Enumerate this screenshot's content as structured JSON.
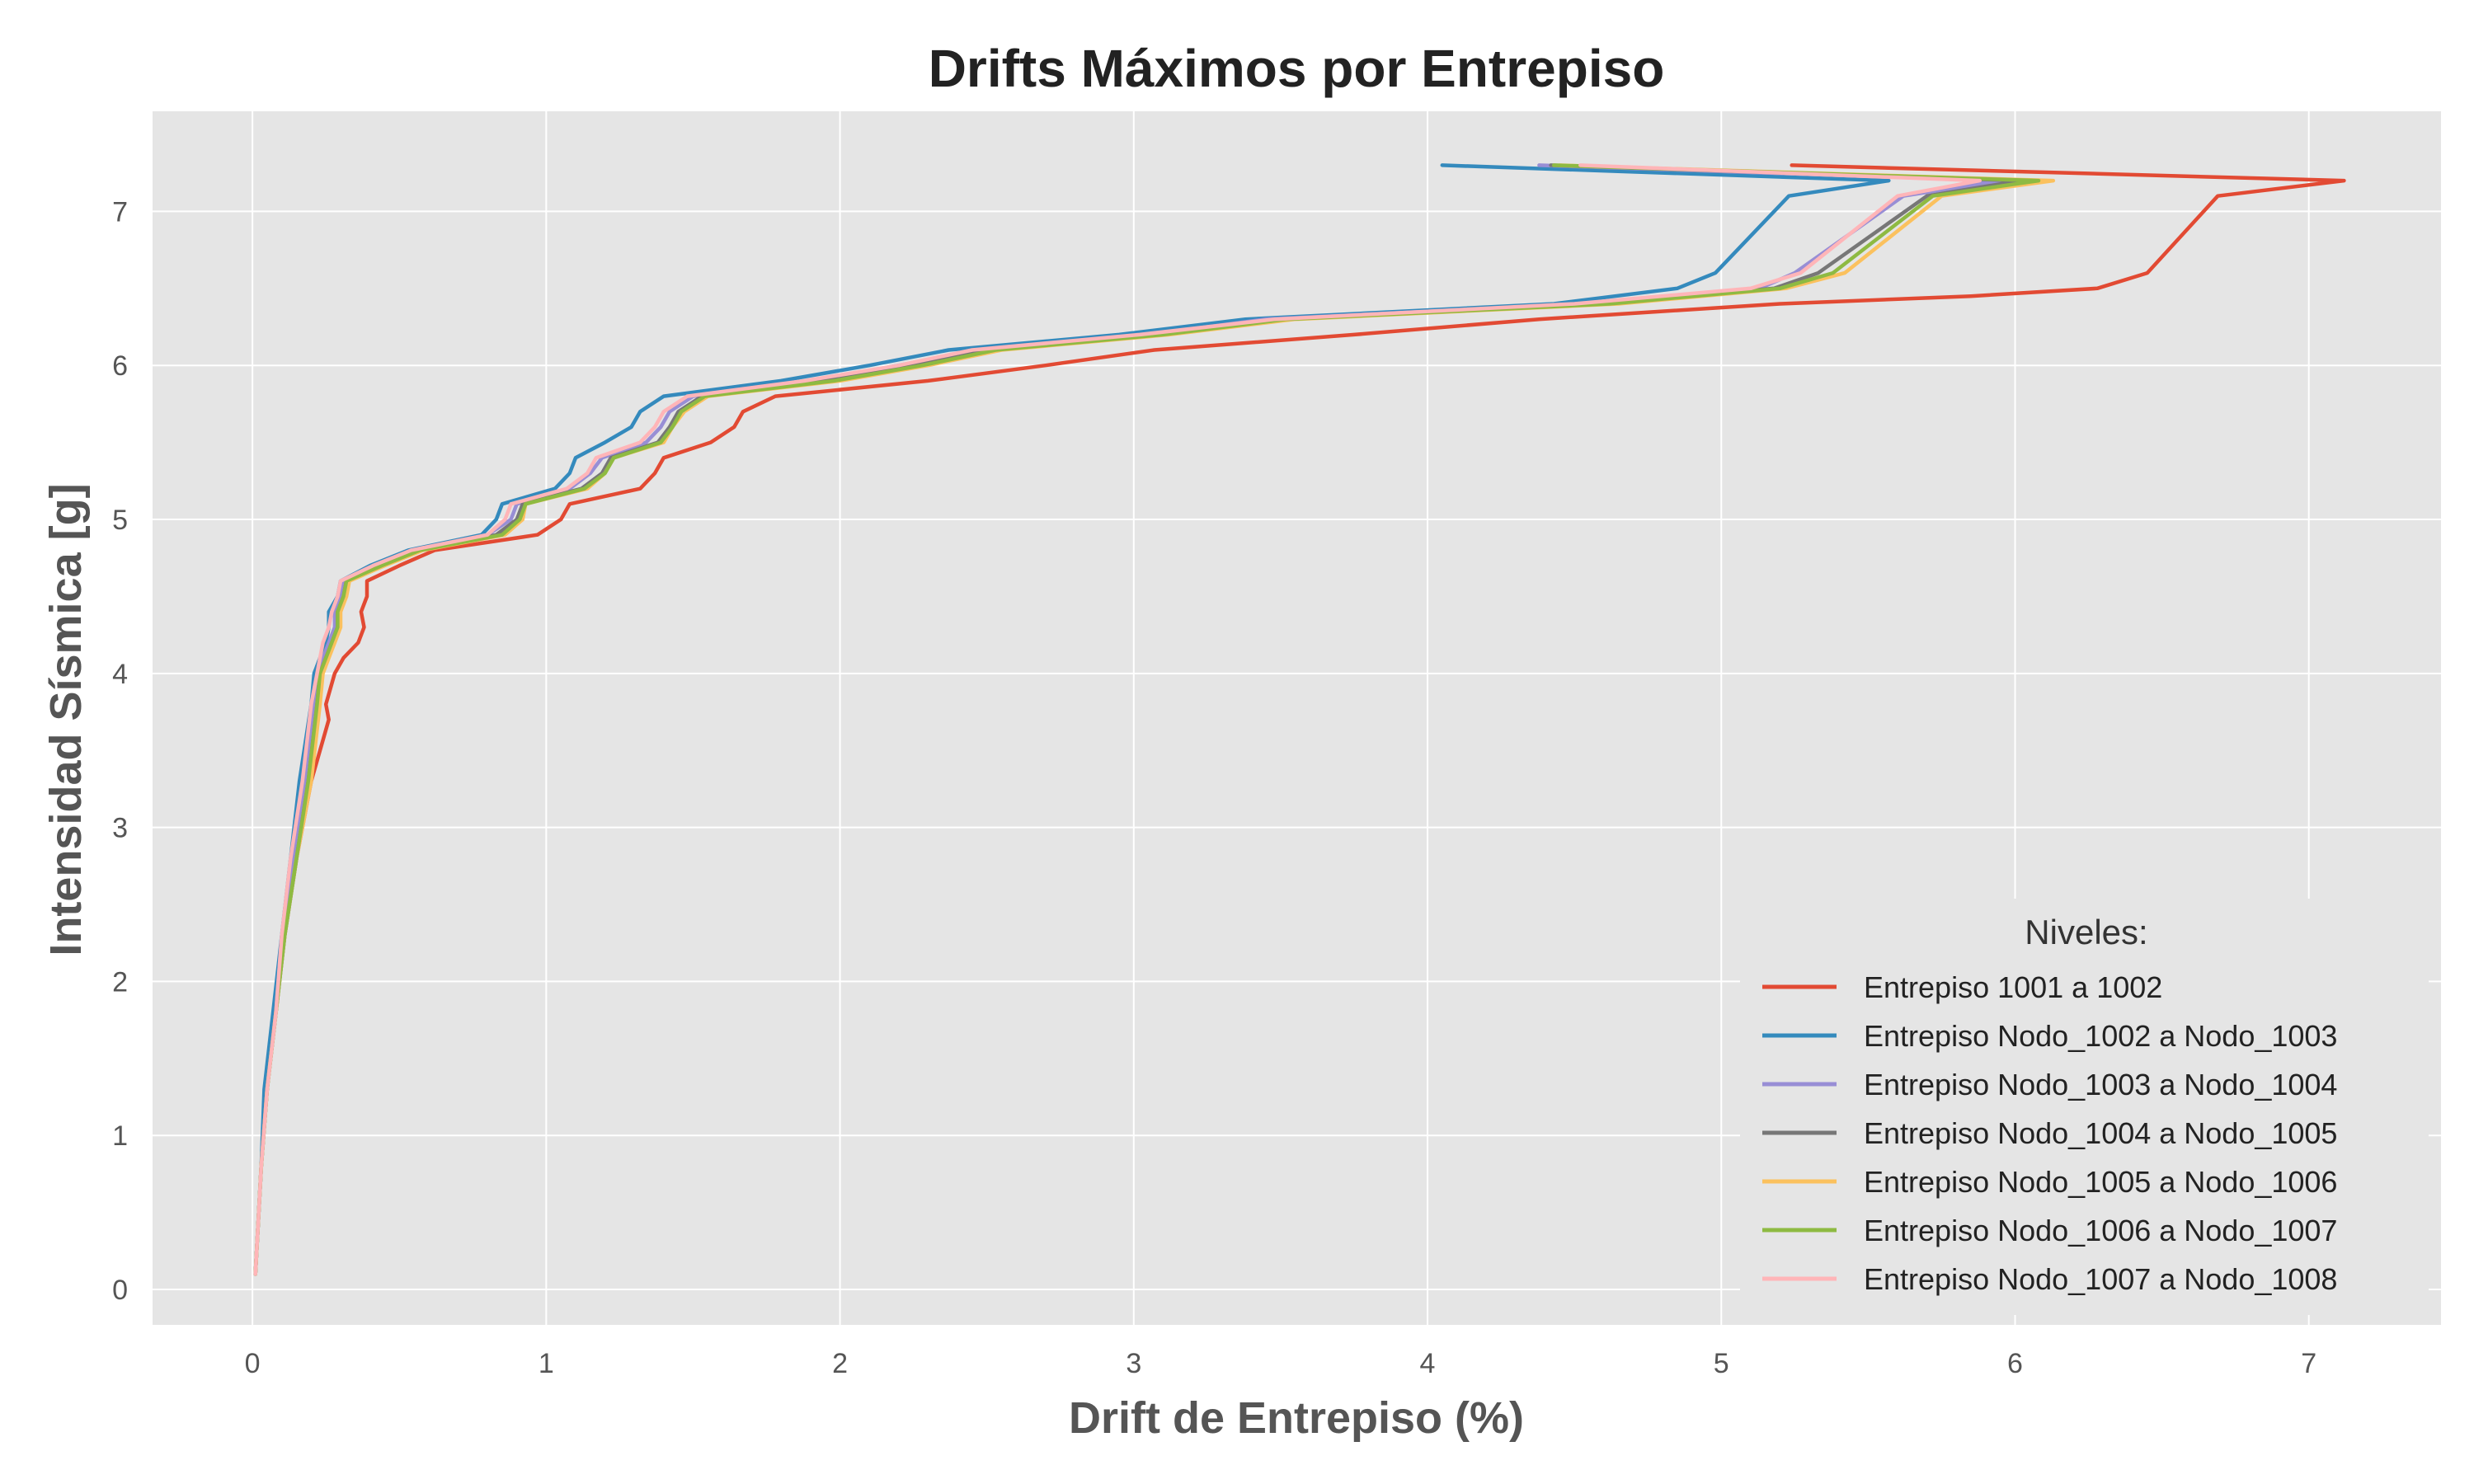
{
  "chart_data": {
    "type": "line",
    "title": "Drifts Máximos por Entrepiso",
    "xlabel": "Drift de Entrepiso (%)",
    "ylabel": "Intensidad Sísmica [g]",
    "xlim": [
      -0.34,
      7.45
    ],
    "ylim": [
      -0.23,
      7.65
    ],
    "xticks": [
      0,
      1,
      2,
      3,
      4,
      5,
      6,
      7
    ],
    "yticks": [
      0,
      1,
      2,
      3,
      4,
      5,
      6,
      7
    ],
    "grid": true,
    "background": "#e5e5e5",
    "legend": {
      "title": "Niveles:",
      "position": "lower-right"
    },
    "series": [
      {
        "name": "Entrepiso 1001 a 1002",
        "color": "#e24a33",
        "points": [
          [
            0.01,
            0.1
          ],
          [
            0.03,
            0.8
          ],
          [
            0.05,
            1.3
          ],
          [
            0.08,
            1.8
          ],
          [
            0.11,
            2.3
          ],
          [
            0.15,
            2.8
          ],
          [
            0.2,
            3.3
          ],
          [
            0.26,
            3.7
          ],
          [
            0.25,
            3.8
          ],
          [
            0.28,
            4.0
          ],
          [
            0.31,
            4.1
          ],
          [
            0.36,
            4.2
          ],
          [
            0.38,
            4.3
          ],
          [
            0.37,
            4.4
          ],
          [
            0.39,
            4.5
          ],
          [
            0.39,
            4.6
          ],
          [
            0.5,
            4.7
          ],
          [
            0.62,
            4.8
          ],
          [
            0.97,
            4.9
          ],
          [
            1.05,
            5.0
          ],
          [
            1.08,
            5.1
          ],
          [
            1.32,
            5.2
          ],
          [
            1.37,
            5.3
          ],
          [
            1.4,
            5.4
          ],
          [
            1.56,
            5.5
          ],
          [
            1.64,
            5.6
          ],
          [
            1.67,
            5.7
          ],
          [
            1.78,
            5.8
          ],
          [
            2.3,
            5.9
          ],
          [
            2.7,
            6.0
          ],
          [
            3.07,
            6.1
          ],
          [
            3.75,
            6.2
          ],
          [
            4.38,
            6.3
          ],
          [
            5.2,
            6.4
          ],
          [
            5.85,
            6.45
          ],
          [
            6.28,
            6.5
          ],
          [
            6.45,
            6.6
          ],
          [
            6.69,
            7.1
          ],
          [
            7.12,
            7.2
          ],
          [
            5.24,
            7.3
          ]
        ]
      },
      {
        "name": "Entrepiso Nodo_1002 a Nodo_1003",
        "color": "#348abd",
        "points": [
          [
            0.01,
            0.1
          ],
          [
            0.03,
            0.8
          ],
          [
            0.04,
            1.3
          ],
          [
            0.07,
            1.8
          ],
          [
            0.1,
            2.3
          ],
          [
            0.13,
            2.8
          ],
          [
            0.16,
            3.3
          ],
          [
            0.2,
            3.8
          ],
          [
            0.21,
            4.0
          ],
          [
            0.23,
            4.1
          ],
          [
            0.25,
            4.2
          ],
          [
            0.26,
            4.3
          ],
          [
            0.26,
            4.4
          ],
          [
            0.29,
            4.5
          ],
          [
            0.3,
            4.6
          ],
          [
            0.4,
            4.7
          ],
          [
            0.53,
            4.8
          ],
          [
            0.78,
            4.9
          ],
          [
            0.83,
            5.0
          ],
          [
            0.85,
            5.1
          ],
          [
            1.03,
            5.2
          ],
          [
            1.08,
            5.3
          ],
          [
            1.1,
            5.4
          ],
          [
            1.2,
            5.5
          ],
          [
            1.29,
            5.6
          ],
          [
            1.32,
            5.7
          ],
          [
            1.4,
            5.8
          ],
          [
            1.8,
            5.9
          ],
          [
            2.1,
            6.0
          ],
          [
            2.37,
            6.1
          ],
          [
            2.95,
            6.2
          ],
          [
            3.38,
            6.3
          ],
          [
            4.43,
            6.4
          ],
          [
            4.85,
            6.5
          ],
          [
            4.98,
            6.6
          ],
          [
            5.23,
            7.1
          ],
          [
            5.57,
            7.2
          ],
          [
            4.05,
            7.3
          ]
        ]
      },
      {
        "name": "Entrepiso Nodo_1003 a Nodo_1004",
        "color": "#988ed5",
        "points": [
          [
            0.01,
            0.1
          ],
          [
            0.03,
            0.8
          ],
          [
            0.05,
            1.3
          ],
          [
            0.08,
            1.8
          ],
          [
            0.1,
            2.3
          ],
          [
            0.14,
            2.8
          ],
          [
            0.18,
            3.3
          ],
          [
            0.21,
            3.8
          ],
          [
            0.22,
            4.0
          ],
          [
            0.24,
            4.1
          ],
          [
            0.26,
            4.2
          ],
          [
            0.28,
            4.3
          ],
          [
            0.28,
            4.4
          ],
          [
            0.3,
            4.5
          ],
          [
            0.31,
            4.6
          ],
          [
            0.42,
            4.7
          ],
          [
            0.55,
            4.8
          ],
          [
            0.8,
            4.9
          ],
          [
            0.88,
            5.0
          ],
          [
            0.9,
            5.1
          ],
          [
            1.08,
            5.2
          ],
          [
            1.15,
            5.3
          ],
          [
            1.19,
            5.4
          ],
          [
            1.34,
            5.5
          ],
          [
            1.39,
            5.6
          ],
          [
            1.42,
            5.7
          ],
          [
            1.5,
            5.8
          ],
          [
            1.9,
            5.9
          ],
          [
            2.2,
            6.0
          ],
          [
            2.47,
            6.1
          ],
          [
            3.05,
            6.2
          ],
          [
            3.45,
            6.3
          ],
          [
            4.55,
            6.4
          ],
          [
            5.13,
            6.5
          ],
          [
            5.25,
            6.6
          ],
          [
            5.62,
            7.1
          ],
          [
            5.95,
            7.2
          ],
          [
            4.38,
            7.3
          ]
        ]
      },
      {
        "name": "Entrepiso Nodo_1004 a Nodo_1005",
        "color": "#777777",
        "points": [
          [
            0.01,
            0.1
          ],
          [
            0.03,
            0.8
          ],
          [
            0.05,
            1.3
          ],
          [
            0.08,
            1.8
          ],
          [
            0.11,
            2.3
          ],
          [
            0.15,
            2.8
          ],
          [
            0.19,
            3.3
          ],
          [
            0.22,
            3.8
          ],
          [
            0.23,
            4.0
          ],
          [
            0.25,
            4.1
          ],
          [
            0.27,
            4.2
          ],
          [
            0.29,
            4.3
          ],
          [
            0.29,
            4.4
          ],
          [
            0.31,
            4.5
          ],
          [
            0.32,
            4.6
          ],
          [
            0.43,
            4.7
          ],
          [
            0.56,
            4.8
          ],
          [
            0.83,
            4.9
          ],
          [
            0.9,
            5.0
          ],
          [
            0.92,
            5.1
          ],
          [
            1.12,
            5.2
          ],
          [
            1.19,
            5.3
          ],
          [
            1.22,
            5.4
          ],
          [
            1.38,
            5.5
          ],
          [
            1.42,
            5.6
          ],
          [
            1.45,
            5.7
          ],
          [
            1.53,
            5.8
          ],
          [
            1.95,
            5.9
          ],
          [
            2.25,
            6.0
          ],
          [
            2.5,
            6.1
          ],
          [
            3.08,
            6.2
          ],
          [
            3.5,
            6.3
          ],
          [
            4.6,
            6.4
          ],
          [
            5.18,
            6.5
          ],
          [
            5.33,
            6.6
          ],
          [
            5.7,
            7.1
          ],
          [
            6.02,
            7.2
          ],
          [
            4.42,
            7.3
          ]
        ]
      },
      {
        "name": "Entrepiso Nodo_1005 a Nodo_1006",
        "color": "#fbc15e",
        "points": [
          [
            0.01,
            0.1
          ],
          [
            0.03,
            0.8
          ],
          [
            0.05,
            1.3
          ],
          [
            0.08,
            1.8
          ],
          [
            0.11,
            2.3
          ],
          [
            0.15,
            2.8
          ],
          [
            0.2,
            3.3
          ],
          [
            0.23,
            3.8
          ],
          [
            0.24,
            4.0
          ],
          [
            0.26,
            4.1
          ],
          [
            0.28,
            4.2
          ],
          [
            0.3,
            4.3
          ],
          [
            0.3,
            4.4
          ],
          [
            0.32,
            4.5
          ],
          [
            0.33,
            4.6
          ],
          [
            0.45,
            4.7
          ],
          [
            0.58,
            4.8
          ],
          [
            0.86,
            4.9
          ],
          [
            0.92,
            5.0
          ],
          [
            0.93,
            5.1
          ],
          [
            1.14,
            5.2
          ],
          [
            1.2,
            5.3
          ],
          [
            1.23,
            5.4
          ],
          [
            1.4,
            5.5
          ],
          [
            1.43,
            5.6
          ],
          [
            1.47,
            5.7
          ],
          [
            1.55,
            5.8
          ],
          [
            2.0,
            5.9
          ],
          [
            2.3,
            6.0
          ],
          [
            2.55,
            6.1
          ],
          [
            3.12,
            6.2
          ],
          [
            3.55,
            6.3
          ],
          [
            4.65,
            6.4
          ],
          [
            5.22,
            6.5
          ],
          [
            5.42,
            6.6
          ],
          [
            5.75,
            7.1
          ],
          [
            6.13,
            7.2
          ],
          [
            4.45,
            7.3
          ]
        ]
      },
      {
        "name": "Entrepiso Nodo_1006 a Nodo_1007",
        "color": "#8eba42",
        "points": [
          [
            0.01,
            0.1
          ],
          [
            0.03,
            0.8
          ],
          [
            0.05,
            1.3
          ],
          [
            0.08,
            1.8
          ],
          [
            0.11,
            2.3
          ],
          [
            0.15,
            2.8
          ],
          [
            0.19,
            3.3
          ],
          [
            0.22,
            3.8
          ],
          [
            0.23,
            4.0
          ],
          [
            0.25,
            4.1
          ],
          [
            0.27,
            4.2
          ],
          [
            0.29,
            4.3
          ],
          [
            0.29,
            4.4
          ],
          [
            0.31,
            4.5
          ],
          [
            0.32,
            4.6
          ],
          [
            0.44,
            4.7
          ],
          [
            0.57,
            4.8
          ],
          [
            0.85,
            4.9
          ],
          [
            0.91,
            5.0
          ],
          [
            0.93,
            5.1
          ],
          [
            1.13,
            5.2
          ],
          [
            1.2,
            5.3
          ],
          [
            1.23,
            5.4
          ],
          [
            1.39,
            5.5
          ],
          [
            1.43,
            5.6
          ],
          [
            1.46,
            5.7
          ],
          [
            1.54,
            5.8
          ],
          [
            1.98,
            5.9
          ],
          [
            2.28,
            6.0
          ],
          [
            2.53,
            6.1
          ],
          [
            3.1,
            6.2
          ],
          [
            3.52,
            6.3
          ],
          [
            4.62,
            6.4
          ],
          [
            5.2,
            6.5
          ],
          [
            5.38,
            6.6
          ],
          [
            5.72,
            7.1
          ],
          [
            6.08,
            7.2
          ],
          [
            4.43,
            7.3
          ]
        ]
      },
      {
        "name": "Entrepiso Nodo_1007 a Nodo_1008",
        "color": "#ffb5b8",
        "points": [
          [
            0.01,
            0.1
          ],
          [
            0.03,
            0.8
          ],
          [
            0.05,
            1.3
          ],
          [
            0.08,
            1.8
          ],
          [
            0.1,
            2.3
          ],
          [
            0.13,
            2.8
          ],
          [
            0.17,
            3.3
          ],
          [
            0.2,
            3.8
          ],
          [
            0.22,
            4.0
          ],
          [
            0.23,
            4.1
          ],
          [
            0.24,
            4.2
          ],
          [
            0.26,
            4.3
          ],
          [
            0.27,
            4.4
          ],
          [
            0.29,
            4.5
          ],
          [
            0.3,
            4.6
          ],
          [
            0.41,
            4.7
          ],
          [
            0.54,
            4.8
          ],
          [
            0.8,
            4.9
          ],
          [
            0.86,
            5.0
          ],
          [
            0.88,
            5.1
          ],
          [
            1.07,
            5.2
          ],
          [
            1.14,
            5.3
          ],
          [
            1.17,
            5.4
          ],
          [
            1.32,
            5.5
          ],
          [
            1.37,
            5.6
          ],
          [
            1.4,
            5.7
          ],
          [
            1.48,
            5.8
          ],
          [
            1.88,
            5.9
          ],
          [
            2.2,
            6.0
          ],
          [
            2.45,
            6.1
          ],
          [
            3.02,
            6.2
          ],
          [
            3.48,
            6.3
          ],
          [
            4.5,
            6.4
          ],
          [
            5.1,
            6.5
          ],
          [
            5.27,
            6.6
          ],
          [
            5.6,
            7.1
          ],
          [
            5.88,
            7.2
          ],
          [
            4.52,
            7.3
          ]
        ]
      }
    ]
  }
}
